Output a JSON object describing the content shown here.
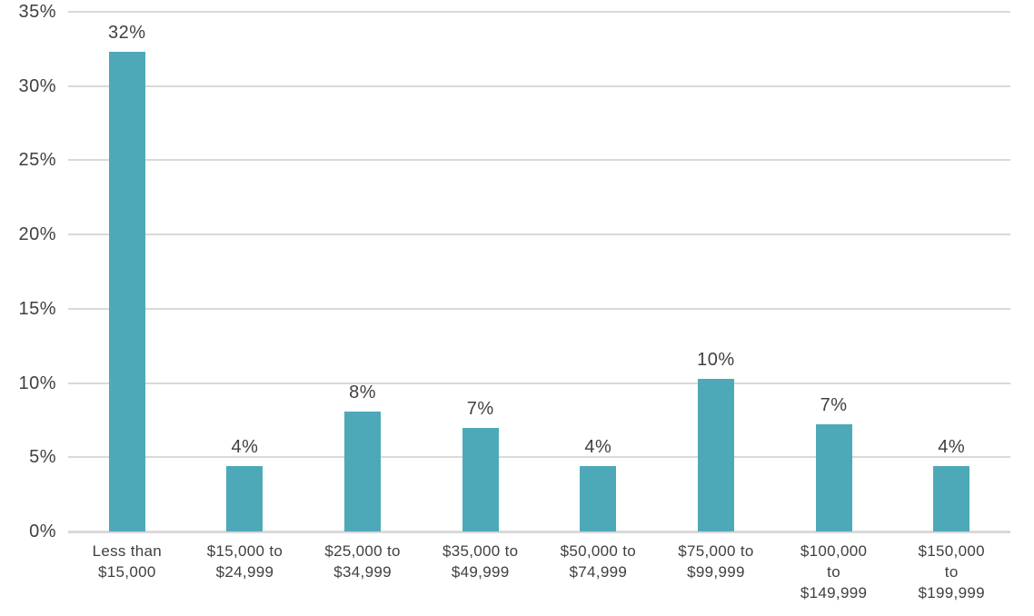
{
  "chart_data": {
    "type": "bar",
    "title": "",
    "xlabel": "",
    "ylabel": "",
    "categories": [
      "Less than $15,000",
      "$15,000 to $24,999",
      "$25,000 to $34,999",
      "$35,000 to $49,999",
      "$50,000 to $74,999",
      "$75,000 to $99,999",
      "$100,000 to $149,999",
      "$150,000 to $199,999"
    ],
    "category_lines": [
      [
        "Less than",
        "$15,000"
      ],
      [
        "$15,000 to",
        "$24,999"
      ],
      [
        "$25,000 to",
        "$34,999"
      ],
      [
        "$35,000 to",
        "$49,999"
      ],
      [
        "$50,000 to",
        "$74,999"
      ],
      [
        "$75,000 to",
        "$99,999"
      ],
      [
        "$100,000",
        "to",
        "$149,999"
      ],
      [
        "$150,000",
        "to",
        "$199,999"
      ]
    ],
    "values": [
      32,
      4,
      8,
      7,
      4,
      10,
      7,
      4
    ],
    "value_labels": [
      "32%",
      "4%",
      "8%",
      "7%",
      "4%",
      "10%",
      "7%",
      "4%"
    ],
    "bar_heights_pct": [
      32.3,
      4.4,
      8.1,
      7.0,
      4.4,
      10.3,
      7.2,
      4.4
    ],
    "ylim": [
      0,
      35
    ],
    "yticks": [
      0,
      5,
      10,
      15,
      20,
      25,
      30,
      35
    ],
    "ytick_labels": [
      "0%",
      "5%",
      "10%",
      "15%",
      "20%",
      "25%",
      "30%",
      "35%"
    ],
    "grid": true,
    "legend": "none",
    "colors": {
      "bar": "#4da9b8",
      "gridline": "#d9d9d9",
      "text": "#404040",
      "background": "#ffffff"
    }
  }
}
